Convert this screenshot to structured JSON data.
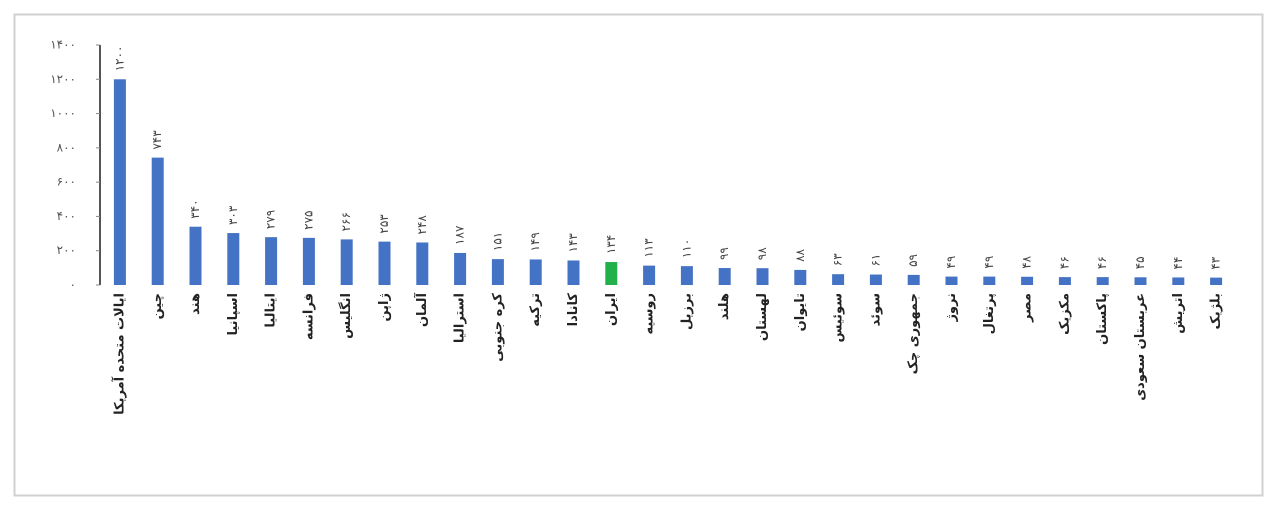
{
  "chart_data": {
    "type": "bar",
    "categories": [
      "ایالات متحده آمریکا",
      "چین",
      "هند",
      "اسپانیا",
      "ایتالیا",
      "فرانسه",
      "انگلیس",
      "ژاپن",
      "آلمان",
      "استرالیا",
      "کره جنوبی",
      "ترکیه",
      "کانادا",
      "ایران",
      "روسیه",
      "برزیل",
      "هلند",
      "لهستان",
      "تایوان",
      "سوئیس",
      "سوئد",
      "جمهوری چک",
      "نروژ",
      "پرتغال",
      "مصر",
      "مکزیک",
      "پاکستان",
      "عربستان سعودی",
      "اتریش",
      "بلژیک"
    ],
    "values": [
      1200,
      743,
      340,
      303,
      279,
      275,
      266,
      253,
      248,
      187,
      151,
      149,
      143,
      134,
      113,
      110,
      99,
      98,
      88,
      63,
      61,
      59,
      49,
      49,
      48,
      46,
      46,
      45,
      44,
      43
    ],
    "value_labels": [
      "۱۲۰۰",
      "۷۴۳",
      "۳۴۰",
      "۳۰۳",
      "۲۷۹",
      "۲۷۵",
      "۲۶۶",
      "۲۵۳",
      "۲۴۸",
      "۱۸۷",
      "۱۵۱",
      "۱۴۹",
      "۱۴۳",
      "۱۳۴",
      "۱۱۳",
      "۱۱۰",
      "۹۹",
      "۹۸",
      "۸۸",
      "۶۳",
      "۶۱",
      "۵۹",
      "۴۹",
      "۴۹",
      "۴۸",
      "۴۶",
      "۴۶",
      "۴۵",
      "۴۴",
      "۴۳"
    ],
    "colors": [
      "#4472c4",
      "#4472c4",
      "#4472c4",
      "#4472c4",
      "#4472c4",
      "#4472c4",
      "#4472c4",
      "#4472c4",
      "#4472c4",
      "#4472c4",
      "#4472c4",
      "#4472c4",
      "#4472c4",
      "#22b04b",
      "#4472c4",
      "#4472c4",
      "#4472c4",
      "#4472c4",
      "#4472c4",
      "#4472c4",
      "#4472c4",
      "#4472c4",
      "#4472c4",
      "#4472c4",
      "#4472c4",
      "#4472c4",
      "#4472c4",
      "#4472c4",
      "#4472c4",
      "#4472c4"
    ],
    "ylim": [
      0,
      1400
    ],
    "yticks": [
      {
        "value": 0,
        "label": "۰"
      },
      {
        "value": 200,
        "label": "۲۰۰"
      },
      {
        "value": 400,
        "label": "۴۰۰"
      },
      {
        "value": 600,
        "label": "۶۰۰"
      },
      {
        "value": 800,
        "label": "۸۰۰"
      },
      {
        "value": 1000,
        "label": "۱۰۰۰"
      },
      {
        "value": 1200,
        "label": "۱۲۰۰"
      },
      {
        "value": 1400,
        "label": "۱۴۰۰"
      }
    ],
    "grid": false
  }
}
